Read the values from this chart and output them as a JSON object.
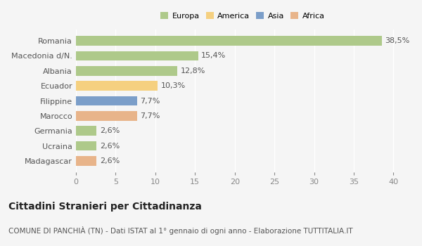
{
  "categories": [
    "Romania",
    "Macedonia d/N.",
    "Albania",
    "Ecuador",
    "Filippine",
    "Marocco",
    "Germania",
    "Ucraina",
    "Madagascar"
  ],
  "values": [
    38.5,
    15.4,
    12.8,
    10.3,
    7.7,
    7.7,
    2.6,
    2.6,
    2.6
  ],
  "labels": [
    "38,5%",
    "15,4%",
    "12,8%",
    "10,3%",
    "7,7%",
    "7,7%",
    "2,6%",
    "2,6%",
    "2,6%"
  ],
  "colors": [
    "#aec98a",
    "#aec98a",
    "#aec98a",
    "#f5d080",
    "#7b9ec9",
    "#e8b48a",
    "#aec98a",
    "#aec98a",
    "#e8b48a"
  ],
  "legend_labels": [
    "Europa",
    "America",
    "Asia",
    "Africa"
  ],
  "legend_colors": [
    "#aec98a",
    "#f5d080",
    "#7b9ec9",
    "#e8b48a"
  ],
  "xlim": [
    0,
    42
  ],
  "xticks": [
    0,
    5,
    10,
    15,
    20,
    25,
    30,
    35,
    40
  ],
  "title": "Cittadini Stranieri per Cittadinanza",
  "subtitle": "COMUNE DI PANCHIÀ (TN) - Dati ISTAT al 1° gennaio di ogni anno - Elaborazione TUTTITALIA.IT",
  "background_color": "#f5f5f5",
  "bar_height": 0.65,
  "grid_color": "#ffffff",
  "label_fontsize": 8,
  "tick_fontsize": 8,
  "title_fontsize": 10,
  "subtitle_fontsize": 7.5
}
